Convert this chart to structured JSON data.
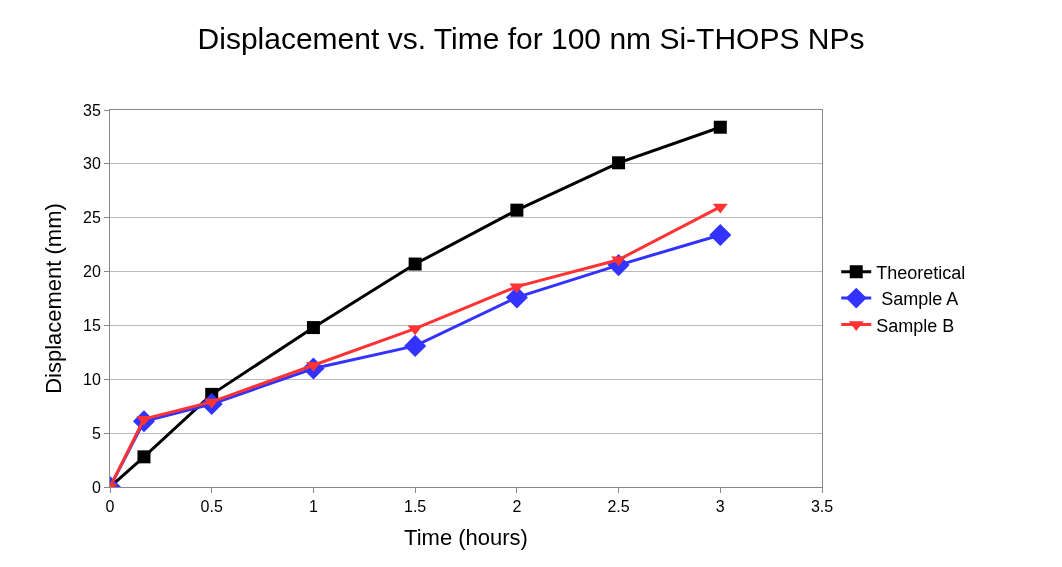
{
  "chart_data": {
    "type": "line",
    "title": "Displacement vs. Time for 100 nm Si-THOPS NPs",
    "xlabel": "Time (hours)",
    "ylabel": "Displacement (mm)",
    "x": [
      0,
      0.167,
      0.5,
      1,
      1.5,
      2,
      2.5,
      3
    ],
    "series": [
      {
        "name": "Theoretical",
        "color": "#000000",
        "marker": "square",
        "values": [
          0,
          2.8,
          8.6,
          14.8,
          20.7,
          25.7,
          30.1,
          33.4
        ]
      },
      {
        "name": " Sample A",
        "color": "#3333ff",
        "marker": "diamond",
        "values": [
          0,
          6.1,
          7.7,
          11.0,
          13.1,
          17.6,
          20.6,
          23.4
        ]
      },
      {
        "name": "Sample B",
        "color": "#ff3333",
        "marker": "triangle",
        "values": [
          0,
          6.3,
          7.9,
          11.3,
          14.7,
          18.6,
          21.1,
          26.0
        ]
      }
    ],
    "xlim": [
      0,
      3.5
    ],
    "xticks": [
      0,
      0.5,
      1,
      1.5,
      2,
      2.5,
      3,
      3.5
    ],
    "ylim": [
      0,
      35
    ],
    "yticks": [
      0,
      5,
      10,
      15,
      20,
      25,
      30,
      35
    ],
    "grid": "y",
    "legend": "right",
    "line_style": "solid"
  }
}
